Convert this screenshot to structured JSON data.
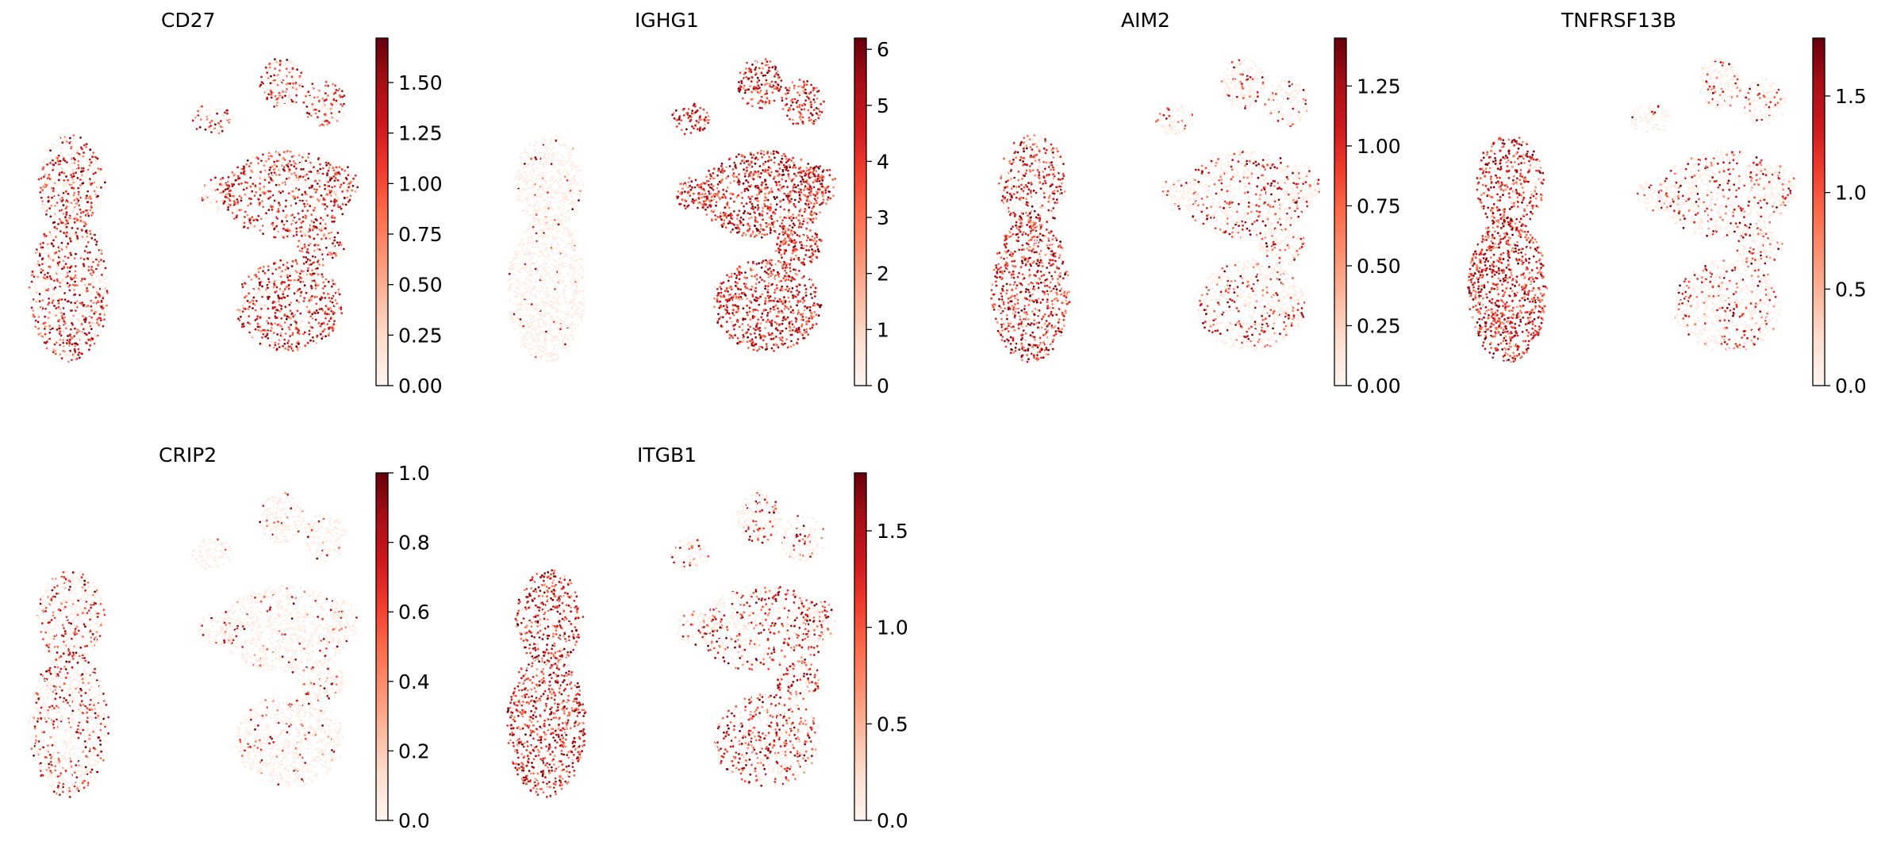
{
  "figure": {
    "type": "scatter",
    "colormap": "Reds",
    "colors": {
      "low": "#fff5f0",
      "mid": "#fb6a4a",
      "high": "#67000d",
      "frame": "#000000",
      "background": "#ffffff"
    },
    "axes_visible": false,
    "grid": false,
    "legend": "colorbar-right-of-each-panel"
  },
  "chart_data": [
    {
      "type": "scatter",
      "title": "CD27",
      "colorbar": {
        "range": [
          0.0,
          1.72
        ],
        "ticks": [
          0.0,
          0.25,
          0.5,
          0.75,
          1.0,
          1.25,
          1.5
        ],
        "tick_labels": [
          "0.00",
          "0.25",
          "0.50",
          "0.75",
          "1.00",
          "1.25",
          "1.50"
        ]
      },
      "cluster_levels": {
        "left_upper": 0.45,
        "left_lower": 0.5,
        "right_top": 0.35,
        "right_middle": 0.55,
        "right_bottom": 0.6,
        "right_arms": 0.45
      }
    },
    {
      "type": "scatter",
      "title": "IGHG1",
      "colorbar": {
        "range": [
          0.0,
          6.2
        ],
        "ticks": [
          0,
          1,
          2,
          3,
          4,
          5,
          6
        ],
        "tick_labels": [
          "0",
          "1",
          "2",
          "3",
          "4",
          "5",
          "6"
        ]
      },
      "cluster_levels": {
        "left_upper": 0.05,
        "left_lower": 0.05,
        "right_top": 0.7,
        "right_middle": 0.9,
        "right_bottom": 0.85,
        "right_arms": 0.85
      }
    },
    {
      "type": "scatter",
      "title": "AIM2",
      "colorbar": {
        "range": [
          0.0,
          1.45
        ],
        "ticks": [
          0.0,
          0.25,
          0.5,
          0.75,
          1.0,
          1.25
        ],
        "tick_labels": [
          "0.00",
          "0.25",
          "0.50",
          "0.75",
          "1.00",
          "1.25"
        ]
      },
      "cluster_levels": {
        "left_upper": 0.5,
        "left_lower": 0.7,
        "right_top": 0.15,
        "right_middle": 0.25,
        "right_bottom": 0.25,
        "right_arms": 0.15
      }
    },
    {
      "type": "scatter",
      "title": "TNFRSF13B",
      "colorbar": {
        "range": [
          0.0,
          1.8
        ],
        "ticks": [
          0.0,
          0.5,
          1.0,
          1.5
        ],
        "tick_labels": [
          "0.0",
          "0.5",
          "1.0",
          "1.5"
        ]
      },
      "cluster_levels": {
        "left_upper": 0.6,
        "left_lower": 0.85,
        "right_top": 0.15,
        "right_middle": 0.25,
        "right_bottom": 0.25,
        "right_arms": 0.15
      }
    },
    {
      "type": "scatter",
      "title": "CRIP2",
      "colorbar": {
        "range": [
          0.0,
          1.0
        ],
        "ticks": [
          0.0,
          0.2,
          0.4,
          0.6,
          0.8,
          1.0
        ],
        "tick_labels": [
          "0.0",
          "0.2",
          "0.4",
          "0.6",
          "0.8",
          "1.0"
        ]
      },
      "cluster_levels": {
        "left_upper": 0.3,
        "left_lower": 0.3,
        "right_top": 0.08,
        "right_middle": 0.1,
        "right_bottom": 0.1,
        "right_arms": 0.08
      }
    },
    {
      "type": "scatter",
      "title": "ITGB1",
      "colorbar": {
        "range": [
          0.0,
          1.8
        ],
        "ticks": [
          0.0,
          0.5,
          1.0,
          1.5
        ],
        "tick_labels": [
          "0.0",
          "0.5",
          "1.0",
          "1.5"
        ]
      },
      "cluster_levels": {
        "left_upper": 0.6,
        "left_lower": 0.7,
        "right_top": 0.25,
        "right_middle": 0.35,
        "right_bottom": 0.4,
        "right_arms": 0.25
      }
    }
  ]
}
